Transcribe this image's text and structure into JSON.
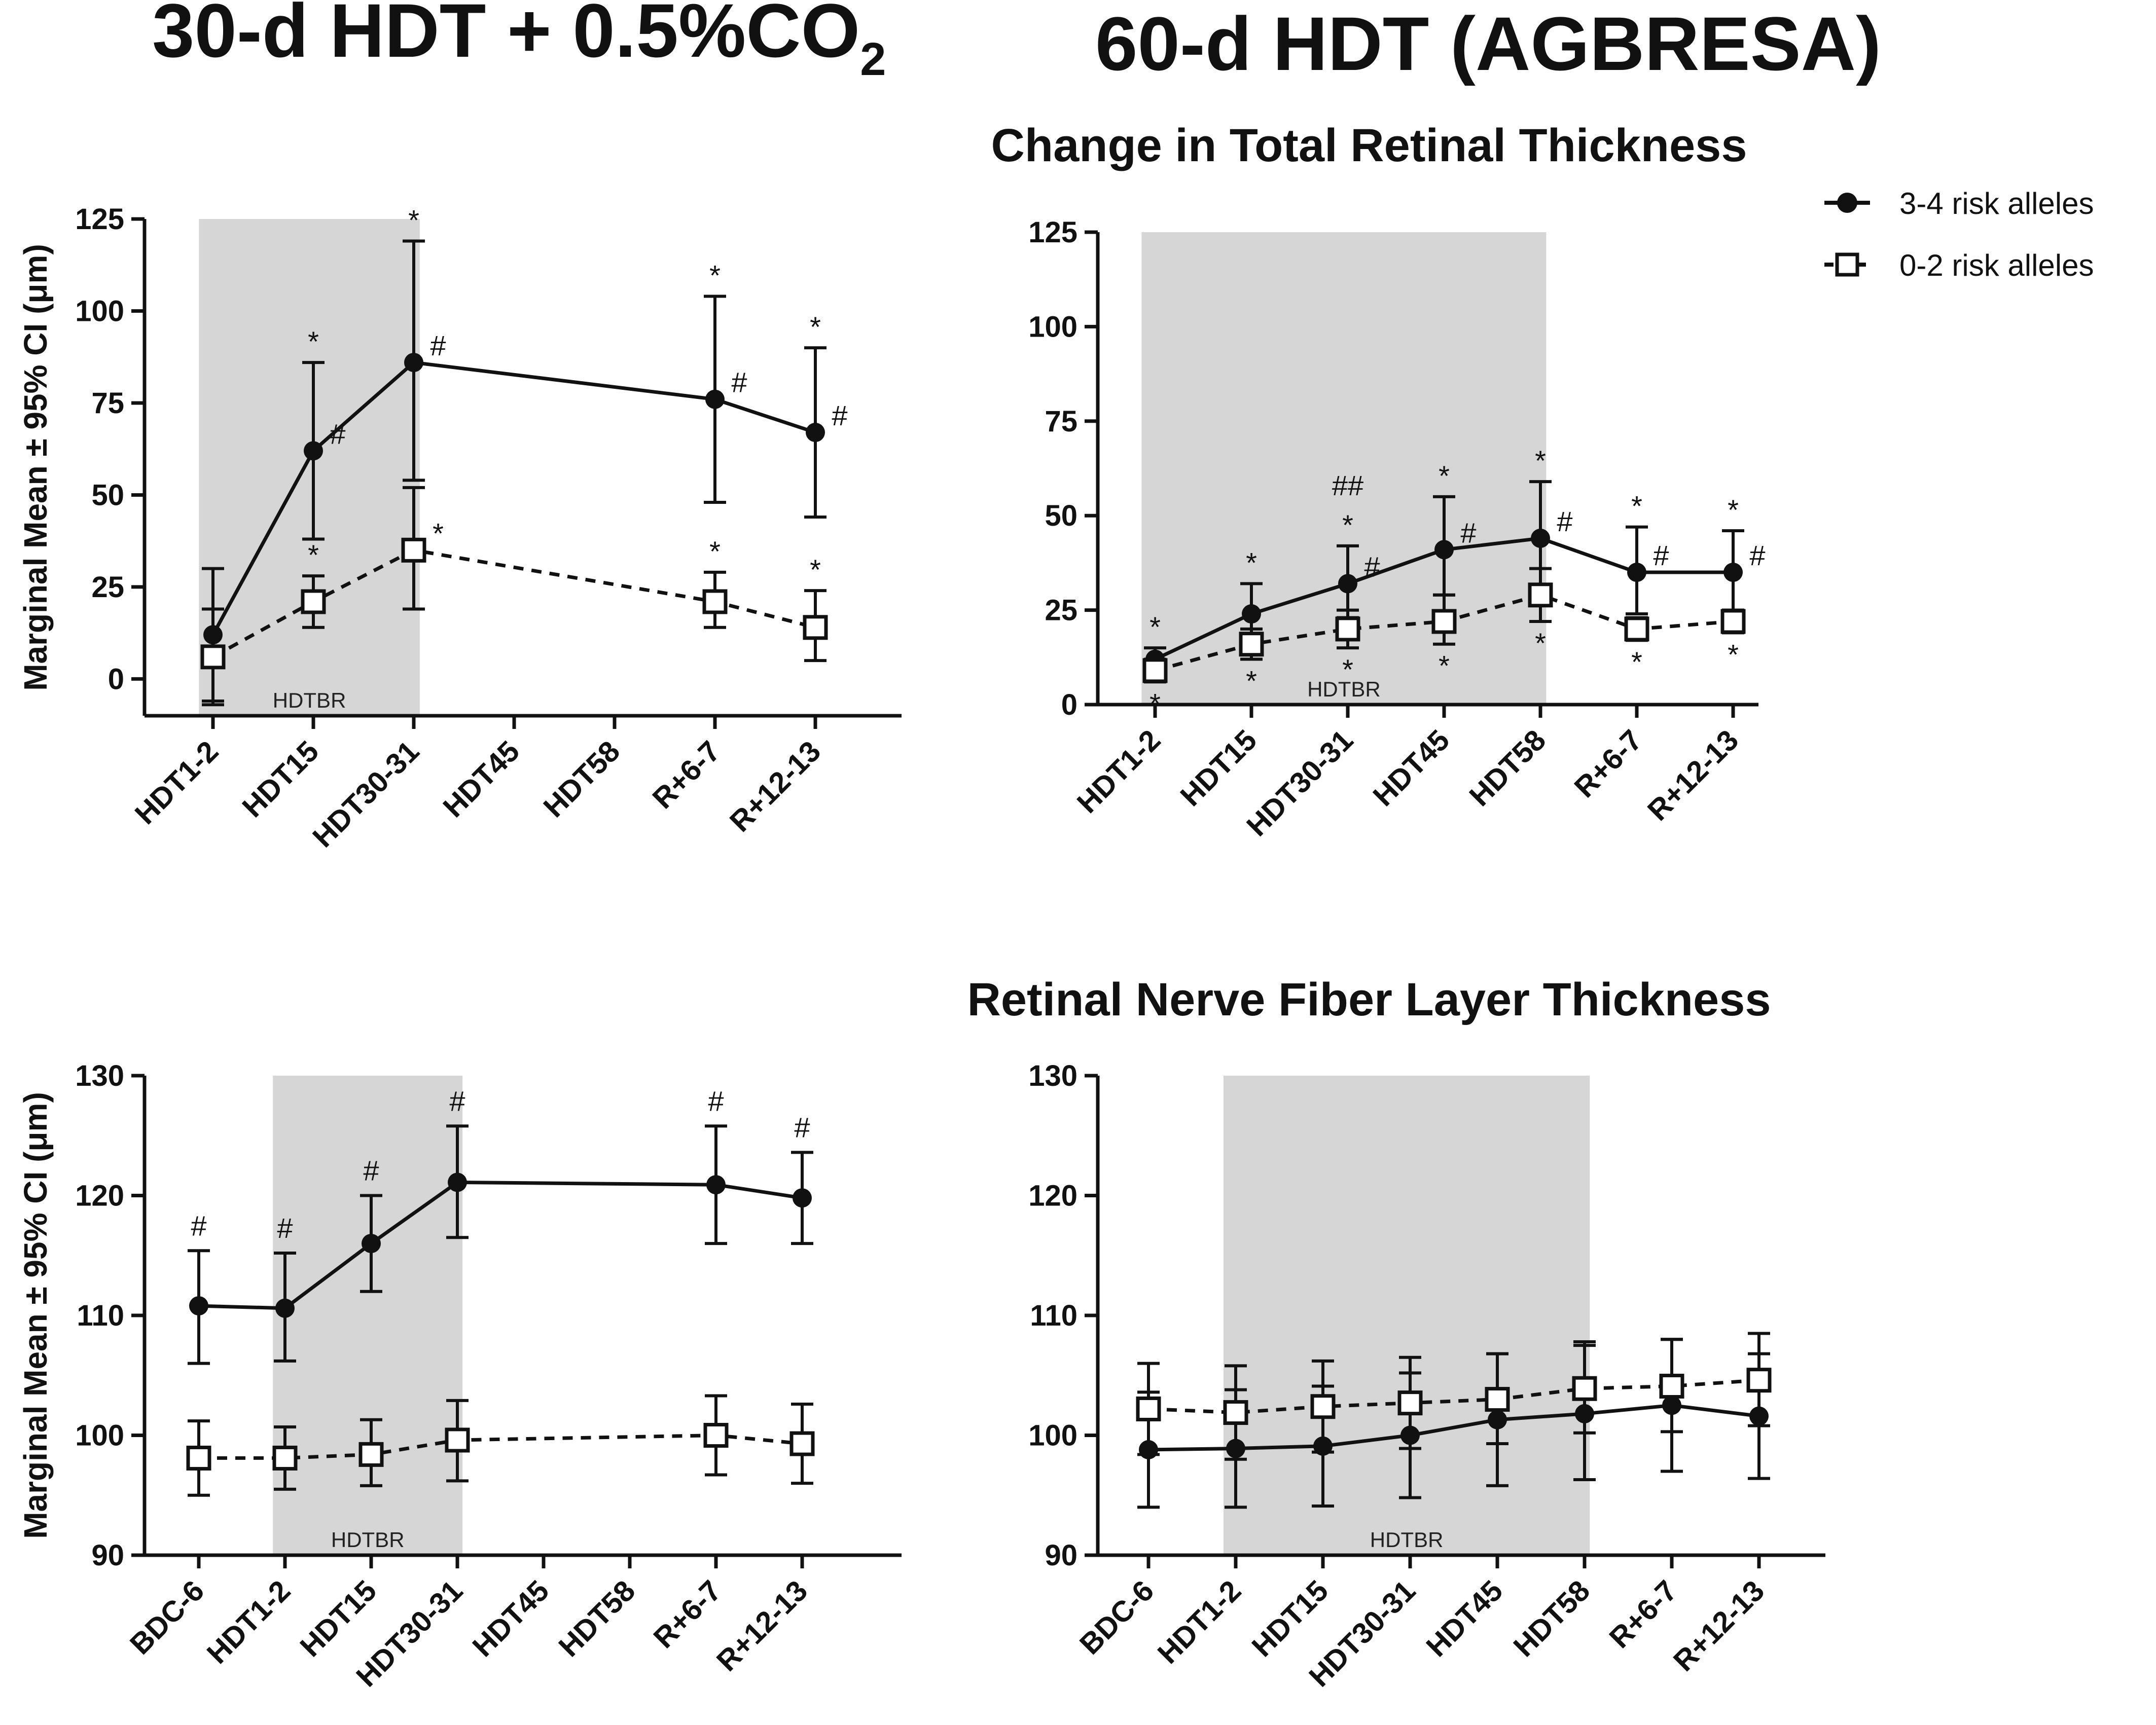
{
  "headings": {
    "left_main": "30-d HDT + 0.5%CO",
    "left_sub": "2",
    "right": "60-d HDT (AGBRESA)",
    "top_section": "Change in Total Retinal Thickness",
    "bottom_section": "Retinal Nerve Fiber Layer Thickness"
  },
  "legend": {
    "high": "3-4 risk alleles",
    "low": "0-2 risk alleles"
  },
  "colors": {
    "ink": "#111111",
    "shade": "#d6d6d6",
    "marker_fill_open": "#ffffff"
  },
  "chart_data": [
    {
      "id": "p1",
      "type": "line",
      "title": "Change in Total Retinal Thickness (30-d HDT + 0.5%CO2)",
      "ylabel": "Marginal Mean ± 95% CI (μm)",
      "ylim": [
        -10,
        125
      ],
      "yticks": [
        0,
        25,
        50,
        75,
        100,
        125
      ],
      "categories": [
        "HDT1-2",
        "HDT15",
        "HDT30-31",
        "HDT45",
        "HDT58",
        "R+6-7",
        "R+12-13"
      ],
      "shade": {
        "from": "HDT1-2",
        "to": "HDT30-31",
        "label": "HDTBR"
      },
      "series": [
        {
          "name": "3-4 risk alleles",
          "marker": "circle-filled",
          "dash": "solid",
          "values": [
            12,
            62,
            86,
            null,
            null,
            76,
            67
          ],
          "lower": [
            -6,
            38,
            54,
            null,
            null,
            48,
            44
          ],
          "upper": [
            30,
            86,
            119,
            null,
            null,
            104,
            90
          ],
          "above": [
            "",
            "*",
            "*",
            "",
            "",
            "*",
            "*"
          ],
          "side": [
            "",
            "#",
            "#",
            "",
            "",
            "#",
            "#"
          ]
        },
        {
          "name": "0-2 risk alleles",
          "marker": "square-open",
          "dash": "dashed",
          "values": [
            6,
            21,
            35,
            null,
            null,
            21,
            14
          ],
          "lower": [
            -7,
            14,
            19,
            null,
            null,
            14,
            5
          ],
          "upper": [
            19,
            28,
            52,
            null,
            null,
            29,
            24
          ],
          "above": [
            "",
            "*",
            "",
            "",
            "",
            "*",
            "*"
          ],
          "side": [
            "",
            "",
            "*",
            "",
            "",
            "",
            ""
          ]
        }
      ]
    },
    {
      "id": "p2",
      "type": "line",
      "title": "Change in Total Retinal Thickness (60-d HDT AGBRESA)",
      "ylabel": "",
      "ylim": [
        0,
        125
      ],
      "yticks": [
        0,
        25,
        50,
        75,
        100,
        125
      ],
      "categories": [
        "HDT1-2",
        "HDT15",
        "HDT30-31",
        "HDT45",
        "HDT58",
        "R+6-7",
        "R+12-13"
      ],
      "shade": {
        "from": "HDT1-2",
        "to": "HDT58",
        "label": "HDTBR"
      },
      "series": [
        {
          "name": "3-4 risk alleles",
          "marker": "circle-filled",
          "dash": "solid",
          "values": [
            12,
            24,
            32,
            41,
            44,
            35,
            35
          ],
          "lower": [
            8,
            15,
            23,
            29,
            30,
            24,
            25
          ],
          "upper": [
            15,
            32,
            42,
            55,
            59,
            47,
            46
          ],
          "above": [
            "*",
            "*",
            "*",
            "*",
            "*",
            "*",
            "*"
          ],
          "side": [
            "",
            "",
            "#",
            "#",
            "#",
            "#",
            "#"
          ],
          "top": [
            "",
            "",
            "##",
            "",
            "",
            "",
            ""
          ]
        },
        {
          "name": "0-2 risk alleles",
          "marker": "square-open",
          "dash": "dashed",
          "values": [
            9,
            16,
            20,
            22,
            29,
            20,
            22
          ],
          "lower": [
            6,
            12,
            15,
            16,
            22,
            17,
            19
          ],
          "upper": [
            12,
            20,
            25,
            29,
            36,
            23,
            25
          ],
          "below": [
            "*",
            "*",
            "*",
            "*",
            "*",
            "*",
            "*"
          ]
        }
      ]
    },
    {
      "id": "p3",
      "type": "line",
      "title": "Retinal Nerve Fiber Layer Thickness (30-d HDT + 0.5%CO2)",
      "ylabel": "Marginal Mean ± 95% CI (μm)",
      "ylim": [
        90,
        130
      ],
      "yticks": [
        90,
        100,
        110,
        120,
        130
      ],
      "categories": [
        "BDC-6",
        "HDT1-2",
        "HDT15",
        "HDT30-31",
        "HDT45",
        "HDT58",
        "R+6-7",
        "R+12-13"
      ],
      "shade": {
        "from": "HDT1-2",
        "to": "HDT30-31",
        "label": "HDTBR"
      },
      "series": [
        {
          "name": "3-4 risk alleles",
          "marker": "circle-filled",
          "dash": "solid",
          "values": [
            110.8,
            110.6,
            116.0,
            121.1,
            null,
            null,
            120.9,
            119.8
          ],
          "lower": [
            106.0,
            106.2,
            112.0,
            116.5,
            null,
            null,
            116.0,
            116.0
          ],
          "upper": [
            115.4,
            115.2,
            120.0,
            125.8,
            null,
            null,
            125.8,
            123.6
          ],
          "above": [
            "#",
            "#",
            "#",
            "#",
            "",
            "",
            "#",
            "#"
          ]
        },
        {
          "name": "0-2 risk alleles",
          "marker": "square-open",
          "dash": "dashed",
          "values": [
            98.1,
            98.1,
            98.4,
            99.6,
            null,
            null,
            100.0,
            99.3
          ],
          "lower": [
            95.0,
            95.5,
            95.8,
            96.2,
            null,
            null,
            96.7,
            96.0
          ],
          "upper": [
            101.2,
            100.7,
            101.3,
            102.9,
            null,
            null,
            103.3,
            102.6
          ]
        }
      ]
    },
    {
      "id": "p4",
      "type": "line",
      "title": "Retinal Nerve Fiber Layer Thickness (60-d HDT AGBRESA)",
      "ylabel": "",
      "ylim": [
        90,
        130
      ],
      "yticks": [
        90,
        100,
        110,
        120,
        130
      ],
      "categories": [
        "BDC-6",
        "HDT1-2",
        "HDT15",
        "HDT30-31",
        "HDT45",
        "HDT58",
        "R+6-7",
        "R+12-13"
      ],
      "shade": {
        "from": "HDT1-2",
        "to": "HDT58",
        "label": "HDTBR"
      },
      "series": [
        {
          "name": "3-4 risk alleles",
          "marker": "circle-filled",
          "dash": "solid",
          "values": [
            98.8,
            98.9,
            99.1,
            100.0,
            101.3,
            101.8,
            102.5,
            101.6
          ],
          "lower": [
            94.0,
            94.0,
            94.1,
            94.8,
            95.8,
            96.3,
            97.0,
            96.4
          ],
          "upper": [
            103.6,
            103.8,
            104.1,
            105.2,
            106.8,
            107.5,
            108.0,
            106.8
          ]
        },
        {
          "name": "0-2 risk alleles",
          "marker": "square-open",
          "dash": "dashed",
          "values": [
            102.2,
            101.9,
            102.4,
            102.7,
            103.0,
            103.9,
            104.1,
            104.6
          ],
          "lower": [
            98.4,
            98.0,
            98.6,
            98.9,
            99.3,
            100.2,
            100.3,
            100.8
          ],
          "upper": [
            106.0,
            105.8,
            106.2,
            106.5,
            106.8,
            107.8,
            108.0,
            108.5
          ]
        }
      ]
    }
  ]
}
